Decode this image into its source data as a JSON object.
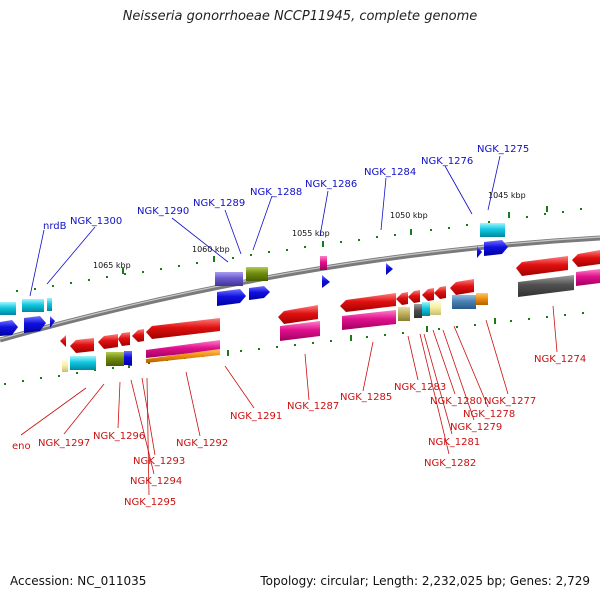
{
  "title": "Neisseria gonorrhoeae NCCP11945, complete genome",
  "footer": {
    "accession": "Accession: NC_011035",
    "summary": "Topology: circular; Length: 2,232,025 bp; Genes: 2,729"
  },
  "kbp_labels": [
    "1065 kbp",
    "1060 kbp",
    "1055 kbp",
    "1050 kbp",
    "1045 kbp"
  ],
  "top_labels": [
    "nrdB",
    "NGK_1300",
    "NGK_1290",
    "NGK_1289",
    "NGK_1288",
    "NGK_1286",
    "NGK_1284",
    "NGK_1276",
    "NGK_1275"
  ],
  "bottom_labels": [
    "eno",
    "NGK_1297",
    "NGK_1296",
    "NGK_1293",
    "NGK_1294",
    "NGK_1295",
    "NGK_1292",
    "NGK_1291",
    "NGK_1287",
    "NGK_1285",
    "NGK_1283",
    "NGK_1280",
    "NGK_1281",
    "NGK_1282",
    "NGK_1279",
    "NGK_1278",
    "NGK_1277",
    "NGK_1274"
  ],
  "colors": {
    "top_label": "#1010c8",
    "bottom_label": "#cc1010",
    "backbone": "#7a7a7a",
    "gene_red": "#e01010",
    "gene_blue": "#1010e0",
    "gene_cyan": "#10c8e0",
    "gene_magenta": "#e0108c",
    "gene_olive": "#708c10",
    "gene_purple": "#6a5acd",
    "gene_orange": "#f09010",
    "gene_steel": "#4a82b4",
    "gene_gray": "#505050",
    "tick_green": "#1a7a1a"
  }
}
